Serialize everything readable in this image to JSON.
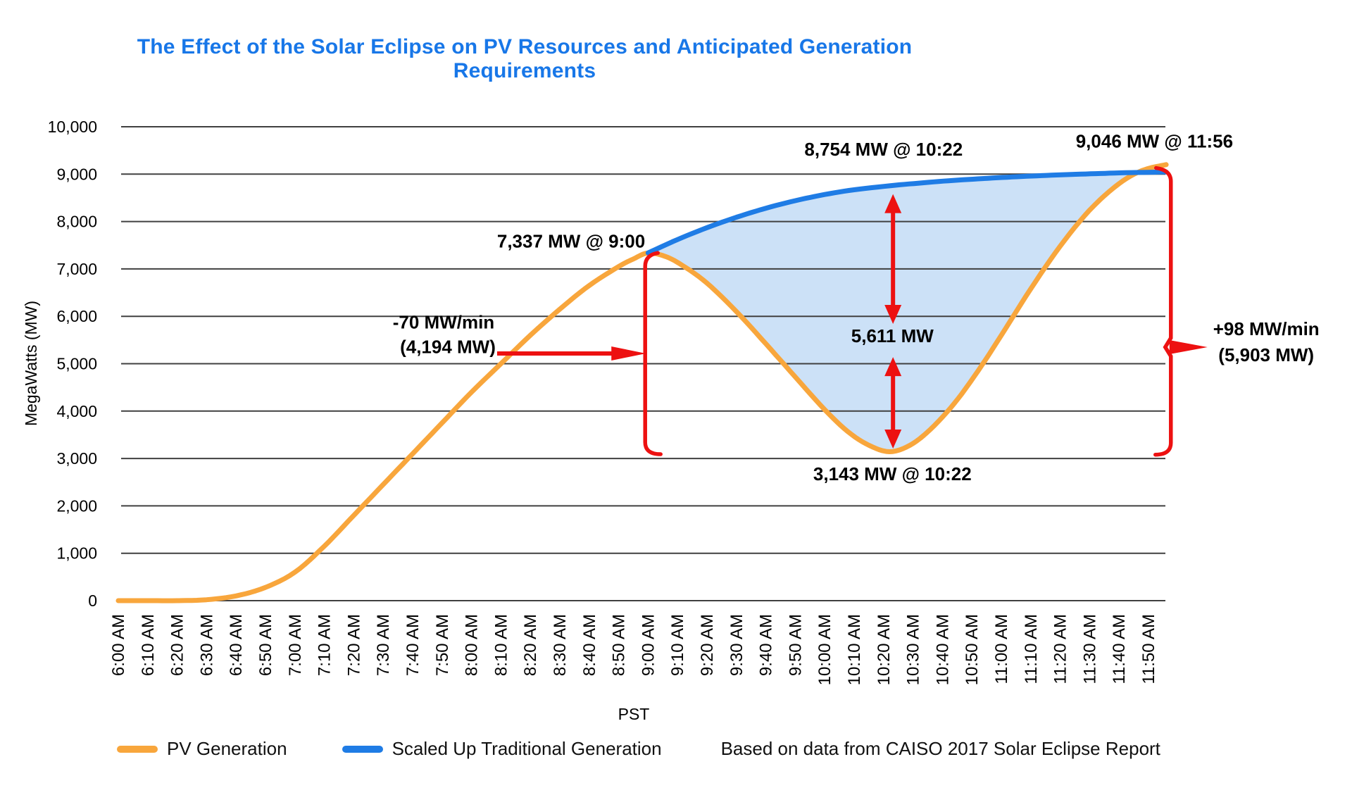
{
  "chart_data": {
    "type": "line",
    "title": "The Effect of the Solar Eclipse on PV Resources and Anticipated Generation Requirements",
    "title_color": "#1877E8",
    "xlabel": "PST",
    "ylabel": "MegaWatts (MW)",
    "ylim": [
      0,
      10000
    ],
    "grid": true,
    "gridline_color": "#404040",
    "y_ticks": [
      "0",
      "1,000",
      "2,000",
      "3,000",
      "4,000",
      "5,000",
      "6,000",
      "7,000",
      "8,000",
      "9,000",
      "10,000"
    ],
    "x_ticks": [
      "6:00 AM",
      "6:10 AM",
      "6:20 AM",
      "6:30 AM",
      "6:40 AM",
      "6:50 AM",
      "7:00 AM",
      "7:10 AM",
      "7:20 AM",
      "7:30 AM",
      "7:40 AM",
      "7:50 AM",
      "8:00 AM",
      "8:10 AM",
      "8:20 AM",
      "8:30 AM",
      "8:40 AM",
      "8:50 AM",
      "9:00 AM",
      "9:10 AM",
      "9:20 AM",
      "9:30 AM",
      "9:40 AM",
      "9:50 AM",
      "10:00 AM",
      "10:10 AM",
      "10:20 AM",
      "10:30 AM",
      "10:40 AM",
      "10:50 AM",
      "11:00 AM",
      "11:10 AM",
      "11:20 AM",
      "11:30 AM",
      "11:40 AM",
      "11:50 AM"
    ],
    "x_units": "minutes after 6:00 AM",
    "series": [
      {
        "name": "PV Generation",
        "color": "#F8A63C",
        "points": [
          [
            0,
            0
          ],
          [
            10,
            0
          ],
          [
            20,
            0
          ],
          [
            30,
            20
          ],
          [
            40,
            100
          ],
          [
            50,
            280
          ],
          [
            60,
            600
          ],
          [
            70,
            1150
          ],
          [
            80,
            1800
          ],
          [
            90,
            2450
          ],
          [
            100,
            3100
          ],
          [
            110,
            3750
          ],
          [
            120,
            4400
          ],
          [
            130,
            5000
          ],
          [
            140,
            5600
          ],
          [
            150,
            6150
          ],
          [
            160,
            6650
          ],
          [
            170,
            7050
          ],
          [
            175,
            7210
          ],
          [
            180,
            7337
          ],
          [
            186,
            7260
          ],
          [
            192,
            7060
          ],
          [
            200,
            6700
          ],
          [
            210,
            6100
          ],
          [
            220,
            5420
          ],
          [
            230,
            4720
          ],
          [
            240,
            4030
          ],
          [
            248,
            3560
          ],
          [
            255,
            3280
          ],
          [
            262,
            3143
          ],
          [
            269,
            3280
          ],
          [
            276,
            3620
          ],
          [
            284,
            4160
          ],
          [
            292,
            4840
          ],
          [
            300,
            5600
          ],
          [
            310,
            6580
          ],
          [
            320,
            7480
          ],
          [
            330,
            8240
          ],
          [
            340,
            8800
          ],
          [
            348,
            9080
          ],
          [
            356,
            9200
          ]
        ]
      },
      {
        "name": "Scaled Up Traditional Generation",
        "color": "#1F7CE5",
        "points": [
          [
            180,
            7337
          ],
          [
            190,
            7620
          ],
          [
            200,
            7870
          ],
          [
            210,
            8090
          ],
          [
            220,
            8280
          ],
          [
            230,
            8440
          ],
          [
            240,
            8570
          ],
          [
            250,
            8670
          ],
          [
            262,
            8754
          ],
          [
            272,
            8810
          ],
          [
            282,
            8860
          ],
          [
            292,
            8900
          ],
          [
            302,
            8935
          ],
          [
            312,
            8965
          ],
          [
            322,
            8990
          ],
          [
            332,
            9010
          ],
          [
            342,
            9030
          ],
          [
            356,
            9046
          ]
        ]
      }
    ],
    "fill_between": {
      "color": "#CCE1F7",
      "from_min": 180,
      "to_min": 356
    },
    "annotation_color": "#000000",
    "marker_color": "#ED1111",
    "annotations": [
      {
        "id": "pv-peak",
        "text": "7,337 MW @ 9:00",
        "t": 179,
        "mw": 7450,
        "anchor": "end"
      },
      {
        "id": "trad-at-max",
        "text": "8,754 MW @ 10:22",
        "t": 260,
        "mw": 9390,
        "anchor": "middle"
      },
      {
        "id": "trad-end",
        "text": "9,046 MW @ 11:56",
        "t": 352,
        "mw": 9560,
        "anchor": "middle"
      },
      {
        "id": "gap",
        "text": "5,611 MW",
        "t": 263,
        "mw": 5450,
        "anchor": "middle"
      },
      {
        "id": "pv-min",
        "text": "3,143 MW @ 10:22",
        "t": 263,
        "mw": 2540,
        "anchor": "middle"
      },
      {
        "id": "ramp-down-1",
        "text": "-70 MW/min",
        "t": 127.8,
        "mw": 5740,
        "anchor": "end"
      },
      {
        "id": "ramp-down-2",
        "text": "(4,194 MW)",
        "t": 128.2,
        "mw": 5220,
        "anchor": "end"
      },
      {
        "id": "ramp-up-1",
        "text": "+98 MW/min",
        "t": 390,
        "mw": 5600,
        "anchor": "middle"
      },
      {
        "id": "ramp-up-2",
        "text": "(5,903 MW)",
        "t": 390,
        "mw": 5050,
        "anchor": "middle"
      }
    ],
    "markers": {
      "left_bracket": {
        "t": 179,
        "mw_top": 7337,
        "mw_bottom": 3090,
        "pointer_mw": 5216,
        "pointer_from_t": 128.7
      },
      "right_bracket": {
        "t": 357.6,
        "mw_top": 9130,
        "mw_bottom": 3080,
        "notch_mw": 5350
      },
      "arrows": [
        {
          "t": 263.2,
          "mw_from": 8580,
          "mw_to": 5840
        },
        {
          "t": 263.2,
          "mw_from": 5140,
          "mw_to": 3210
        }
      ]
    },
    "legend": {
      "position": "bottom",
      "items": [
        {
          "label": "PV Generation",
          "color": "#F8A63C"
        },
        {
          "label": "Scaled Up Traditional Generation",
          "color": "#1F7CE5"
        }
      ]
    },
    "source_note": "Based on data from CAISO 2017 Solar Eclipse Report"
  }
}
